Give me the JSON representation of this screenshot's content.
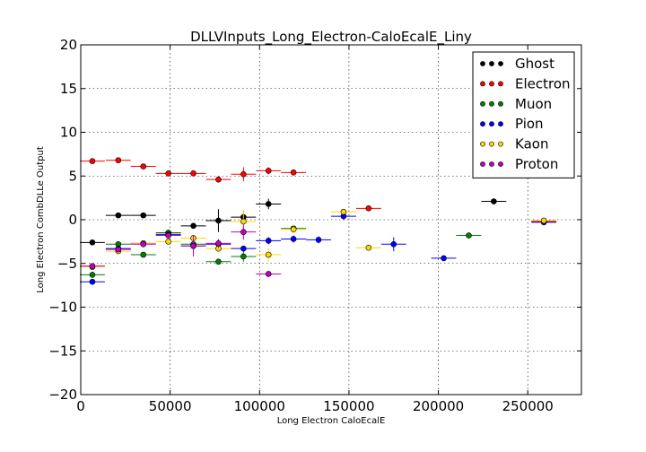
{
  "chart_data": {
    "type": "scatter",
    "title": "DLLVInputs_Long_Electron-CaloEcalE_Liny",
    "xlabel": "Long Electron CaloEcalE",
    "ylabel": "Long Electron CombDLLe Output",
    "xlim": [
      0,
      280000
    ],
    "ylim": [
      -20,
      20
    ],
    "x_ticks": [
      0,
      50000,
      100000,
      150000,
      200000,
      250000
    ],
    "x_tick_labels": [
      "0",
      "50000",
      "100000",
      "150000",
      "200000",
      "250000"
    ],
    "y_ticks": [
      -20,
      -15,
      -10,
      -5,
      0,
      5,
      10,
      15,
      20
    ],
    "y_tick_labels": [
      "−20",
      "−15",
      "−10",
      "−5",
      "0",
      "5",
      "10",
      "15",
      "20"
    ],
    "grid": true,
    "legend_position": "top-right",
    "series": [
      {
        "name": "Ghost",
        "color": "#000000",
        "points": [
          {
            "x": 6500,
            "y": -2.6,
            "xerr": 7000,
            "yerr": 0.1
          },
          {
            "x": 21000,
            "y": 0.5,
            "xerr": 7000,
            "yerr": 0.1
          },
          {
            "x": 35000,
            "y": 0.5,
            "xerr": 7000,
            "yerr": 0.15
          },
          {
            "x": 49000,
            "y": -1.5,
            "xerr": 7000,
            "yerr": 0.2
          },
          {
            "x": 63000,
            "y": -0.7,
            "xerr": 7000,
            "yerr": 0.3
          },
          {
            "x": 77000,
            "y": -0.1,
            "xerr": 7000,
            "yerr": 1.3
          },
          {
            "x": 91000,
            "y": 0.3,
            "xerr": 7000,
            "yerr": 0.6
          },
          {
            "x": 105000,
            "y": 1.8,
            "xerr": 7000,
            "yerr": 0.6
          },
          {
            "x": 231000,
            "y": 2.1,
            "xerr": 7000,
            "yerr": 0.3
          }
        ]
      },
      {
        "name": "Electron",
        "color": "#ff0000",
        "points": [
          {
            "x": 6500,
            "y": 6.7,
            "xerr": 7000,
            "yerr": 0.1
          },
          {
            "x": 21000,
            "y": 6.8,
            "xerr": 7000,
            "yerr": 0.1
          },
          {
            "x": 35000,
            "y": 6.1,
            "xerr": 7000,
            "yerr": 0.1
          },
          {
            "x": 49000,
            "y": 5.3,
            "xerr": 7000,
            "yerr": 0.1
          },
          {
            "x": 63000,
            "y": 5.3,
            "xerr": 7000,
            "yerr": 0.1
          },
          {
            "x": 77000,
            "y": 4.6,
            "xerr": 7000,
            "yerr": 0.15
          },
          {
            "x": 91000,
            "y": 5.2,
            "xerr": 7000,
            "yerr": 0.8
          },
          {
            "x": 105000,
            "y": 5.6,
            "xerr": 7000,
            "yerr": 0.4
          },
          {
            "x": 119000,
            "y": 5.4,
            "xerr": 7000,
            "yerr": 0.2
          },
          {
            "x": 161000,
            "y": 1.3,
            "xerr": 7000,
            "yerr": 0.1
          },
          {
            "x": 259000,
            "y": -0.2,
            "xerr": 7000,
            "yerr": 0.1
          }
        ]
      },
      {
        "name": "Muon",
        "color": "#008000",
        "points": [
          {
            "x": 6500,
            "y": -6.3,
            "xerr": 7000,
            "yerr": 0.1
          },
          {
            "x": 21000,
            "y": -2.8,
            "xerr": 7000,
            "yerr": 0.1
          },
          {
            "x": 35000,
            "y": -4.0,
            "xerr": 7000,
            "yerr": 0.3
          },
          {
            "x": 49000,
            "y": -1.5,
            "xerr": 7000,
            "yerr": 0.4
          },
          {
            "x": 63000,
            "y": -2.8,
            "xerr": 7000,
            "yerr": 0.3
          },
          {
            "x": 77000,
            "y": -4.8,
            "xerr": 7000,
            "yerr": 0.2
          },
          {
            "x": 91000,
            "y": -4.2,
            "xerr": 7000,
            "yerr": 0.6
          },
          {
            "x": 119000,
            "y": -1.0,
            "xerr": 7000,
            "yerr": 0.3
          },
          {
            "x": 217000,
            "y": -1.8,
            "xerr": 7000,
            "yerr": 0.2
          }
        ]
      },
      {
        "name": "Pion",
        "color": "#0000ff",
        "points": [
          {
            "x": 6500,
            "y": -7.1,
            "xerr": 7000,
            "yerr": 0.1
          },
          {
            "x": 21000,
            "y": -3.3,
            "xerr": 7000,
            "yerr": 0.1
          },
          {
            "x": 35000,
            "y": -2.7,
            "xerr": 7000,
            "yerr": 0.1
          },
          {
            "x": 49000,
            "y": -1.7,
            "xerr": 7000,
            "yerr": 0.1
          },
          {
            "x": 63000,
            "y": -3.0,
            "xerr": 7000,
            "yerr": 0.2
          },
          {
            "x": 77000,
            "y": -2.8,
            "xerr": 7000,
            "yerr": 0.2
          },
          {
            "x": 91000,
            "y": -3.3,
            "xerr": 7000,
            "yerr": 0.3
          },
          {
            "x": 105000,
            "y": -2.4,
            "xerr": 7000,
            "yerr": 0.4
          },
          {
            "x": 119000,
            "y": -2.2,
            "xerr": 7000,
            "yerr": 0.4
          },
          {
            "x": 133000,
            "y": -2.3,
            "xerr": 7000,
            "yerr": 0.4
          },
          {
            "x": 147000,
            "y": 0.4,
            "xerr": 7000,
            "yerr": 0.4
          },
          {
            "x": 175000,
            "y": -2.8,
            "xerr": 7000,
            "yerr": 0.8
          },
          {
            "x": 203000,
            "y": -4.4,
            "xerr": 7000,
            "yerr": 0.2
          },
          {
            "x": 259000,
            "y": -0.3,
            "xerr": 7000,
            "yerr": 0.1
          }
        ]
      },
      {
        "name": "Kaon",
        "color": "#ffd700",
        "points": [
          {
            "x": 6500,
            "y": -5.4,
            "xerr": 7000,
            "yerr": 0.1
          },
          {
            "x": 21000,
            "y": -3.6,
            "xerr": 7000,
            "yerr": 0.1
          },
          {
            "x": 35000,
            "y": -2.7,
            "xerr": 7000,
            "yerr": 0.2
          },
          {
            "x": 49000,
            "y": -2.5,
            "xerr": 7000,
            "yerr": 0.2
          },
          {
            "x": 63000,
            "y": -2.1,
            "xerr": 7000,
            "yerr": 0.3
          },
          {
            "x": 77000,
            "y": -3.3,
            "xerr": 7000,
            "yerr": 0.3
          },
          {
            "x": 91000,
            "y": -0.2,
            "xerr": 7000,
            "yerr": 1.3
          },
          {
            "x": 105000,
            "y": -4.0,
            "xerr": 7000,
            "yerr": 0.8
          },
          {
            "x": 119000,
            "y": -1.1,
            "xerr": 7000,
            "yerr": 0.4
          },
          {
            "x": 147000,
            "y": 0.9,
            "xerr": 7000,
            "yerr": 0.3
          },
          {
            "x": 161000,
            "y": -3.2,
            "xerr": 7000,
            "yerr": 0.1
          },
          {
            "x": 259000,
            "y": -0.1,
            "xerr": 7000,
            "yerr": 0.1
          }
        ]
      },
      {
        "name": "Proton",
        "color": "#bf00bf",
        "points": [
          {
            "x": 6500,
            "y": -5.3,
            "xerr": 7000,
            "yerr": 0.1
          },
          {
            "x": 21000,
            "y": -3.4,
            "xerr": 7000,
            "yerr": 0.1
          },
          {
            "x": 35000,
            "y": -2.8,
            "xerr": 7000,
            "yerr": 0.2
          },
          {
            "x": 49000,
            "y": -1.8,
            "xerr": 7000,
            "yerr": 0.3
          },
          {
            "x": 63000,
            "y": -3.0,
            "xerr": 7000,
            "yerr": 1.2
          },
          {
            "x": 77000,
            "y": -2.7,
            "xerr": 7000,
            "yerr": 0.5
          },
          {
            "x": 91000,
            "y": -1.4,
            "xerr": 7000,
            "yerr": 0.9
          },
          {
            "x": 105000,
            "y": -6.2,
            "xerr": 7000,
            "yerr": 0.1
          }
        ]
      }
    ]
  }
}
